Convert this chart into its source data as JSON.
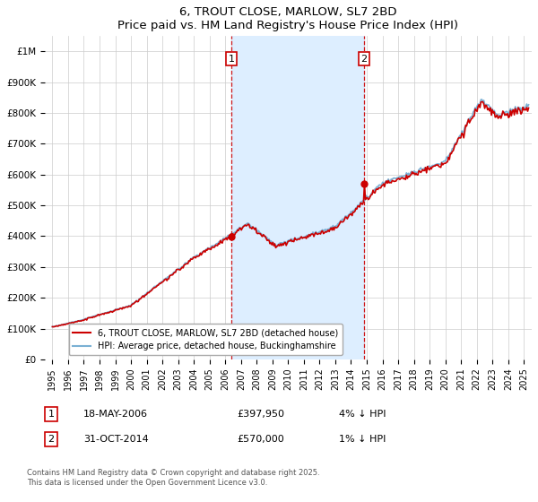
{
  "title": "6, TROUT CLOSE, MARLOW, SL7 2BD",
  "subtitle": "Price paid vs. HM Land Registry's House Price Index (HPI)",
  "xlim": [
    1994.5,
    2025.5
  ],
  "ylim": [
    0,
    1050000
  ],
  "yticks": [
    0,
    100000,
    200000,
    300000,
    400000,
    500000,
    600000,
    700000,
    800000,
    900000,
    1000000
  ],
  "ytick_labels": [
    "£0",
    "£100K",
    "£200K",
    "£300K",
    "£400K",
    "£500K",
    "£600K",
    "£700K",
    "£800K",
    "£900K",
    "£1M"
  ],
  "xticks": [
    1995,
    1996,
    1997,
    1998,
    1999,
    2000,
    2001,
    2002,
    2003,
    2004,
    2005,
    2006,
    2007,
    2008,
    2009,
    2010,
    2011,
    2012,
    2013,
    2014,
    2015,
    2016,
    2017,
    2018,
    2019,
    2020,
    2021,
    2022,
    2023,
    2024,
    2025
  ],
  "sale1_x": 2006.38,
  "sale1_y": 397950,
  "sale1_label": "1",
  "sale1_date": "18-MAY-2006",
  "sale1_price": "£397,950",
  "sale1_hpi": "4% ↓ HPI",
  "sale2_x": 2014.83,
  "sale2_y": 570000,
  "sale2_label": "2",
  "sale2_date": "31-OCT-2014",
  "sale2_price": "£570,000",
  "sale2_hpi": "1% ↓ HPI",
  "line_color_red": "#cc0000",
  "line_color_blue": "#7ab0d4",
  "fill_color": "#ddeeff",
  "vline_color": "#cc0000",
  "grid_color": "#cccccc",
  "legend1": "6, TROUT CLOSE, MARLOW, SL7 2BD (detached house)",
  "legend2": "HPI: Average price, detached house, Buckinghamshire",
  "footnote": "Contains HM Land Registry data © Crown copyright and database right 2025.\nThis data is licensed under the Open Government Licence v3.0.",
  "background_color": "#ffffff"
}
